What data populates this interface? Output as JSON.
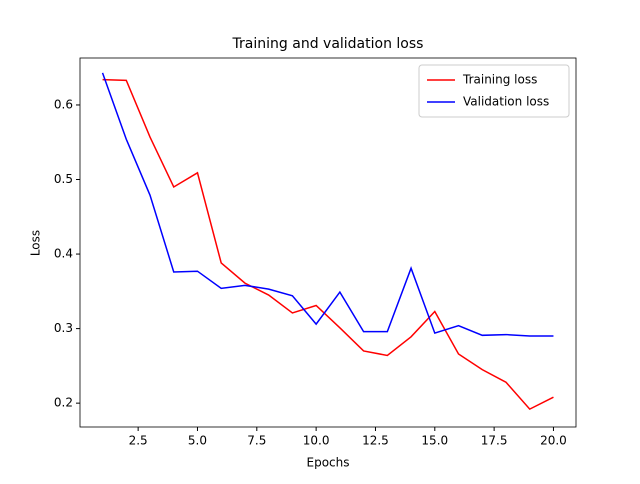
{
  "chart_data": {
    "type": "line",
    "title": "Training and validation loss",
    "xlabel": "Epochs",
    "ylabel": "Loss",
    "x": [
      1,
      2,
      3,
      4,
      5,
      6,
      7,
      8,
      9,
      10,
      11,
      12,
      13,
      14,
      15,
      16,
      17,
      18,
      19,
      20
    ],
    "series": [
      {
        "name": "Training loss",
        "color": "#ff0000",
        "values": [
          0.634,
          0.633,
          0.557,
          0.49,
          0.509,
          0.388,
          0.361,
          0.345,
          0.321,
          0.331,
          0.301,
          0.27,
          0.264,
          0.289,
          0.323,
          0.266,
          0.245,
          0.228,
          0.192,
          0.208
        ]
      },
      {
        "name": "Validation loss",
        "color": "#0000ff",
        "values": [
          0.643,
          0.554,
          0.479,
          0.376,
          0.377,
          0.354,
          0.358,
          0.353,
          0.344,
          0.306,
          0.349,
          0.296,
          0.296,
          0.381,
          0.294,
          0.304,
          0.291,
          0.292,
          0.29,
          0.29
        ]
      }
    ],
    "xlim": [
      0.05,
      20.95
    ],
    "ylim": [
      0.168,
      0.663
    ],
    "xticks": [
      {
        "value": 2.5,
        "label": "2.5"
      },
      {
        "value": 5,
        "label": "5.0"
      },
      {
        "value": 7.5,
        "label": "7.5"
      },
      {
        "value": 10,
        "label": "10.0"
      },
      {
        "value": 12.5,
        "label": "12.5"
      },
      {
        "value": 15,
        "label": "15.0"
      },
      {
        "value": 17.5,
        "label": "17.5"
      },
      {
        "value": 20,
        "label": "20.0"
      }
    ],
    "yticks": [
      0.2,
      0.3,
      0.4,
      0.5,
      0.6
    ],
    "legend": "upper right"
  }
}
